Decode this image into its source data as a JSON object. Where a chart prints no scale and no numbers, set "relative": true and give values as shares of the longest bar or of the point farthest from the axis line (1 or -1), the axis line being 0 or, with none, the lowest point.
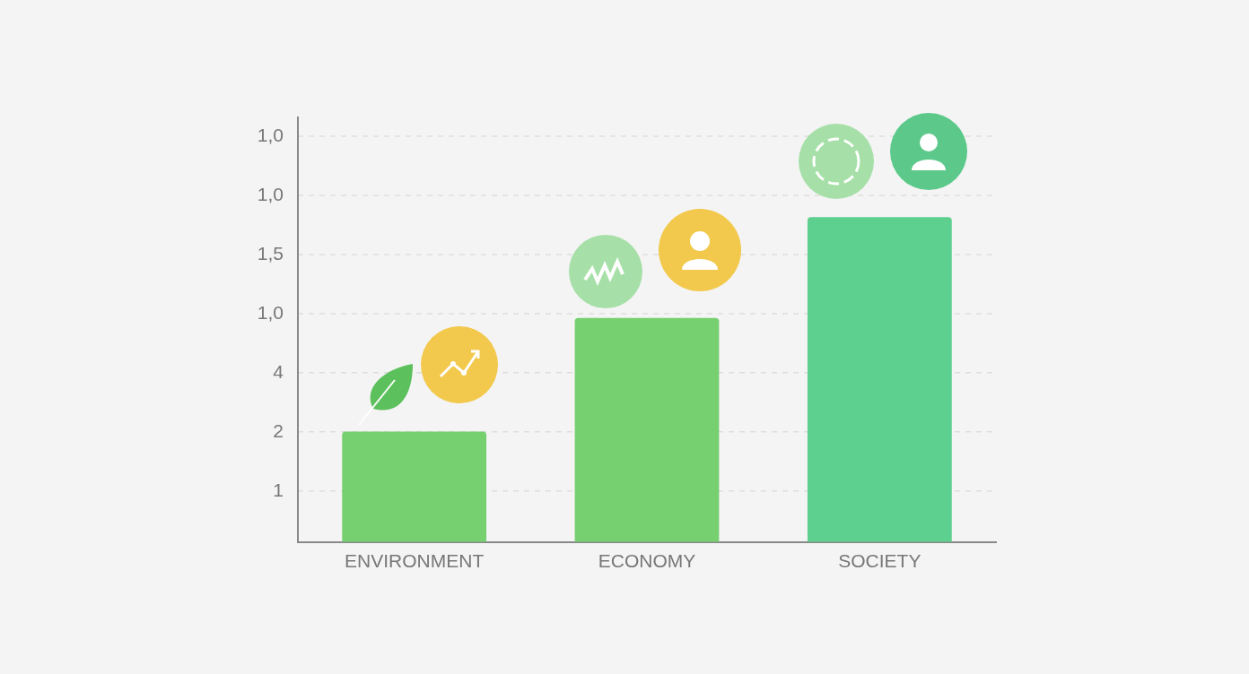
{
  "chart_data": {
    "type": "bar",
    "categories": [
      "ENVIRONMENT",
      "ECONOMY",
      "SOCIETY"
    ],
    "values": [
      0.34,
      0.69,
      1.0
    ],
    "colors": [
      "#77d070",
      "#77d070",
      "#5dcf8f"
    ],
    "relative": true,
    "annotations": [
      "1,0",
      "1,0",
      "1,5",
      "1,0",
      "4",
      "2",
      "1"
    ]
  }
}
